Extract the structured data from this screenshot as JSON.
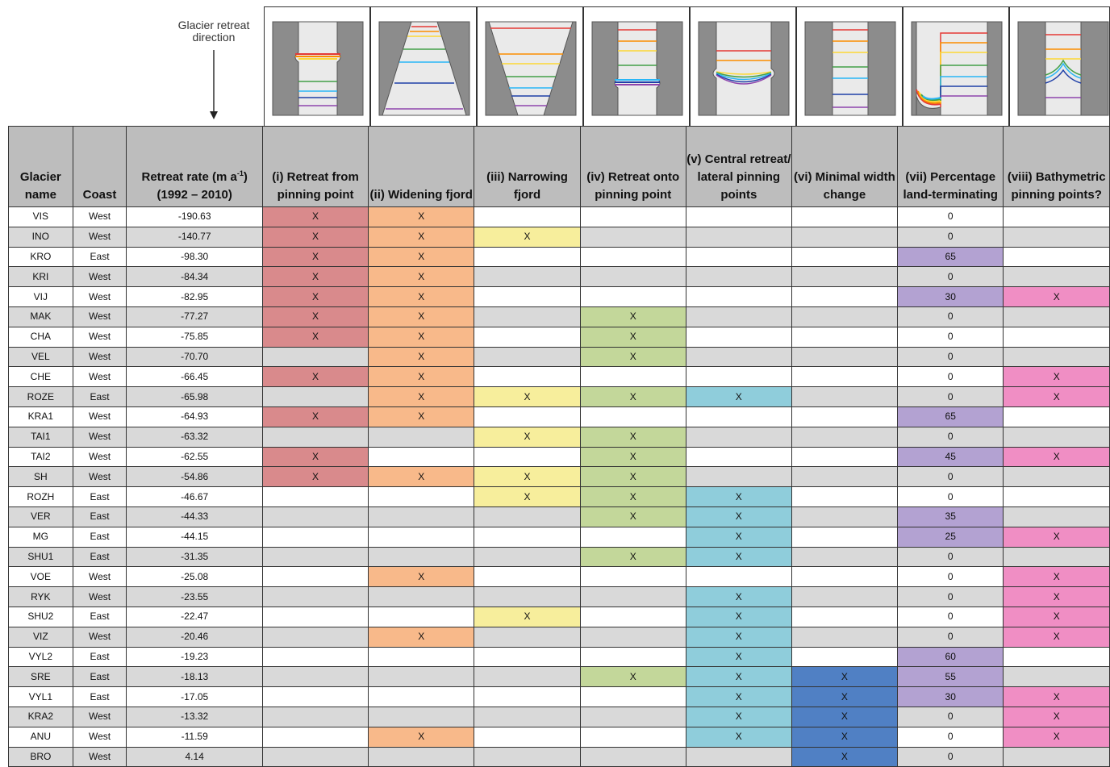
{
  "arrow_label": "Glacier retreat direction",
  "headers": {
    "name": "Glacier name",
    "coast": "Coast",
    "rate": "Retreat rate (m a",
    "rate_sup": "-1",
    "rate_close": ")",
    "rate_period": "(1992 – 2010)",
    "c1": "(i) Retreat from pinning point",
    "c2": "(ii) Widening fjord",
    "c3": "(iii) Narrowing fjord",
    "c4": "(iv) Retreat onto pinning point",
    "c5": "(v) Central retreat/ lateral pinning points",
    "c6": "(vi) Minimal width change",
    "c7": "(vii) Percentage land-terminating",
    "c8": "(viii) Bathymetric pinning points?"
  },
  "colors": {
    "i": "#d98a8c",
    "ii": "#f8b98a",
    "iii": "#f7ee9c",
    "iv": "#c3d79a",
    "v": "#8fcddb",
    "vi": "#5080c4",
    "vii": "#b3a2d2",
    "viii": "#f08ec4",
    "header": "#bdbdbd",
    "row_grey": "#d9d9d9"
  },
  "rows": [
    {
      "name": "VIS",
      "coast": "West",
      "rate": "-190.63",
      "i": "X",
      "ii": "X",
      "iii": "",
      "iv": "",
      "v": "",
      "vi": "",
      "vii": "0",
      "vii_hl": false,
      "viii": ""
    },
    {
      "name": "INO",
      "coast": "West",
      "rate": "-140.77",
      "i": "X",
      "ii": "X",
      "iii": "X",
      "iv": "",
      "v": "",
      "vi": "",
      "vii": "0",
      "vii_hl": false,
      "viii": ""
    },
    {
      "name": "KRO",
      "coast": "East",
      "rate": "-98.30",
      "i": "X",
      "ii": "X",
      "iii": "",
      "iv": "",
      "v": "",
      "vi": "",
      "vii": "65",
      "vii_hl": true,
      "viii": ""
    },
    {
      "name": "KRI",
      "coast": "West",
      "rate": "-84.34",
      "i": "X",
      "ii": "X",
      "iii": "",
      "iv": "",
      "v": "",
      "vi": "",
      "vii": "0",
      "vii_hl": false,
      "viii": ""
    },
    {
      "name": "VIJ",
      "coast": "West",
      "rate": "-82.95",
      "i": "X",
      "ii": "X",
      "iii": "",
      "iv": "",
      "v": "",
      "vi": "",
      "vii": "30",
      "vii_hl": true,
      "viii": "X"
    },
    {
      "name": "MAK",
      "coast": "West",
      "rate": "-77.27",
      "i": "X",
      "ii": "X",
      "iii": "",
      "iv": "X",
      "v": "",
      "vi": "",
      "vii": "0",
      "vii_hl": false,
      "viii": ""
    },
    {
      "name": "CHA",
      "coast": "West",
      "rate": "-75.85",
      "i": "X",
      "ii": "X",
      "iii": "",
      "iv": "X",
      "v": "",
      "vi": "",
      "vii": "0",
      "vii_hl": false,
      "viii": ""
    },
    {
      "name": "VEL",
      "coast": "West",
      "rate": "-70.70",
      "i": "",
      "ii": "X",
      "iii": "",
      "iv": "X",
      "v": "",
      "vi": "",
      "vii": "0",
      "vii_hl": false,
      "viii": ""
    },
    {
      "name": "CHE",
      "coast": "West",
      "rate": "-66.45",
      "i": "X",
      "ii": "X",
      "iii": "",
      "iv": "",
      "v": "",
      "vi": "",
      "vii": "0",
      "vii_hl": false,
      "viii": "X"
    },
    {
      "name": "ROZE",
      "coast": "East",
      "rate": "-65.98",
      "i": "",
      "ii": "X",
      "iii": "X",
      "iv": "X",
      "v": "X",
      "vi": "",
      "vii": "0",
      "vii_hl": false,
      "viii": "X"
    },
    {
      "name": "KRA1",
      "coast": "West",
      "rate": "-64.93",
      "i": "X",
      "ii": "X",
      "iii": "",
      "iv": "",
      "v": "",
      "vi": "",
      "vii": "65",
      "vii_hl": true,
      "viii": ""
    },
    {
      "name": "TAI1",
      "coast": "West",
      "rate": "-63.32",
      "i": "",
      "ii": "",
      "iii": "X",
      "iv": "X",
      "v": "",
      "vi": "",
      "vii": "0",
      "vii_hl": false,
      "viii": ""
    },
    {
      "name": "TAI2",
      "coast": "West",
      "rate": "-62.55",
      "i": "X",
      "ii": "",
      "iii": "",
      "iv": "X",
      "v": "",
      "vi": "",
      "vii": "45",
      "vii_hl": true,
      "viii": "X"
    },
    {
      "name": "SH",
      "coast": "West",
      "rate": "-54.86",
      "i": "X",
      "ii": "X",
      "iii": "X",
      "iv": "X",
      "v": "",
      "vi": "",
      "vii": "0",
      "vii_hl": false,
      "viii": ""
    },
    {
      "name": "ROZH",
      "coast": "East",
      "rate": "-46.67",
      "i": "",
      "ii": "",
      "iii": "X",
      "iv": "X",
      "v": "X",
      "vi": "",
      "vii": "0",
      "vii_hl": false,
      "viii": ""
    },
    {
      "name": "VER",
      "coast": "East",
      "rate": "-44.33",
      "i": "",
      "ii": "",
      "iii": "",
      "iv": "X",
      "v": "X",
      "vi": "",
      "vii": "35",
      "vii_hl": true,
      "viii": ""
    },
    {
      "name": "MG",
      "coast": "East",
      "rate": "-44.15",
      "i": "",
      "ii": "",
      "iii": "",
      "iv": "",
      "v": "X",
      "vi": "",
      "vii": "25",
      "vii_hl": true,
      "viii": "X"
    },
    {
      "name": "SHU1",
      "coast": "East",
      "rate": "-31.35",
      "i": "",
      "ii": "",
      "iii": "",
      "iv": "X",
      "v": "X",
      "vi": "",
      "vii": "0",
      "vii_hl": false,
      "viii": ""
    },
    {
      "name": "VOE",
      "coast": "West",
      "rate": "-25.08",
      "i": "",
      "ii": "X",
      "iii": "",
      "iv": "",
      "v": "",
      "vi": "",
      "vii": "0",
      "vii_hl": false,
      "viii": "X"
    },
    {
      "name": "RYK",
      "coast": "West",
      "rate": "-23.55",
      "i": "",
      "ii": "",
      "iii": "",
      "iv": "",
      "v": "X",
      "vi": "",
      "vii": "0",
      "vii_hl": false,
      "viii": "X"
    },
    {
      "name": "SHU2",
      "coast": "East",
      "rate": "-22.47",
      "i": "",
      "ii": "",
      "iii": "X",
      "iv": "",
      "v": "X",
      "vi": "",
      "vii": "0",
      "vii_hl": false,
      "viii": "X"
    },
    {
      "name": "VIZ",
      "coast": "West",
      "rate": "-20.46",
      "i": "",
      "ii": "X",
      "iii": "",
      "iv": "",
      "v": "X",
      "vi": "",
      "vii": "0",
      "vii_hl": false,
      "viii": "X"
    },
    {
      "name": "VYL2",
      "coast": "East",
      "rate": "-19.23",
      "i": "",
      "ii": "",
      "iii": "",
      "iv": "",
      "v": "X",
      "vi": "",
      "vii": "60",
      "vii_hl": true,
      "viii": ""
    },
    {
      "name": "SRE",
      "coast": "East",
      "rate": "-18.13",
      "i": "",
      "ii": "",
      "iii": "",
      "iv": "X",
      "v": "X",
      "vi": "X",
      "vii": "55",
      "vii_hl": true,
      "viii": ""
    },
    {
      "name": "VYL1",
      "coast": "East",
      "rate": "-17.05",
      "i": "",
      "ii": "",
      "iii": "",
      "iv": "",
      "v": "X",
      "vi": "X",
      "vii": "30",
      "vii_hl": true,
      "viii": "X"
    },
    {
      "name": "KRA2",
      "coast": "West",
      "rate": "-13.32",
      "i": "",
      "ii": "",
      "iii": "",
      "iv": "",
      "v": "X",
      "vi": "X",
      "vii": "0",
      "vii_hl": false,
      "viii": "X"
    },
    {
      "name": "ANU",
      "coast": "West",
      "rate": "-11.59",
      "i": "",
      "ii": "X",
      "iii": "",
      "iv": "",
      "v": "X",
      "vi": "X",
      "vii": "0",
      "vii_hl": false,
      "viii": "X"
    },
    {
      "name": "BRO",
      "coast": "West",
      "rate": "4.14",
      "i": "",
      "ii": "",
      "iii": "",
      "iv": "",
      "v": "",
      "vi": "X",
      "vii": "0",
      "vii_hl": false,
      "viii": ""
    }
  ]
}
